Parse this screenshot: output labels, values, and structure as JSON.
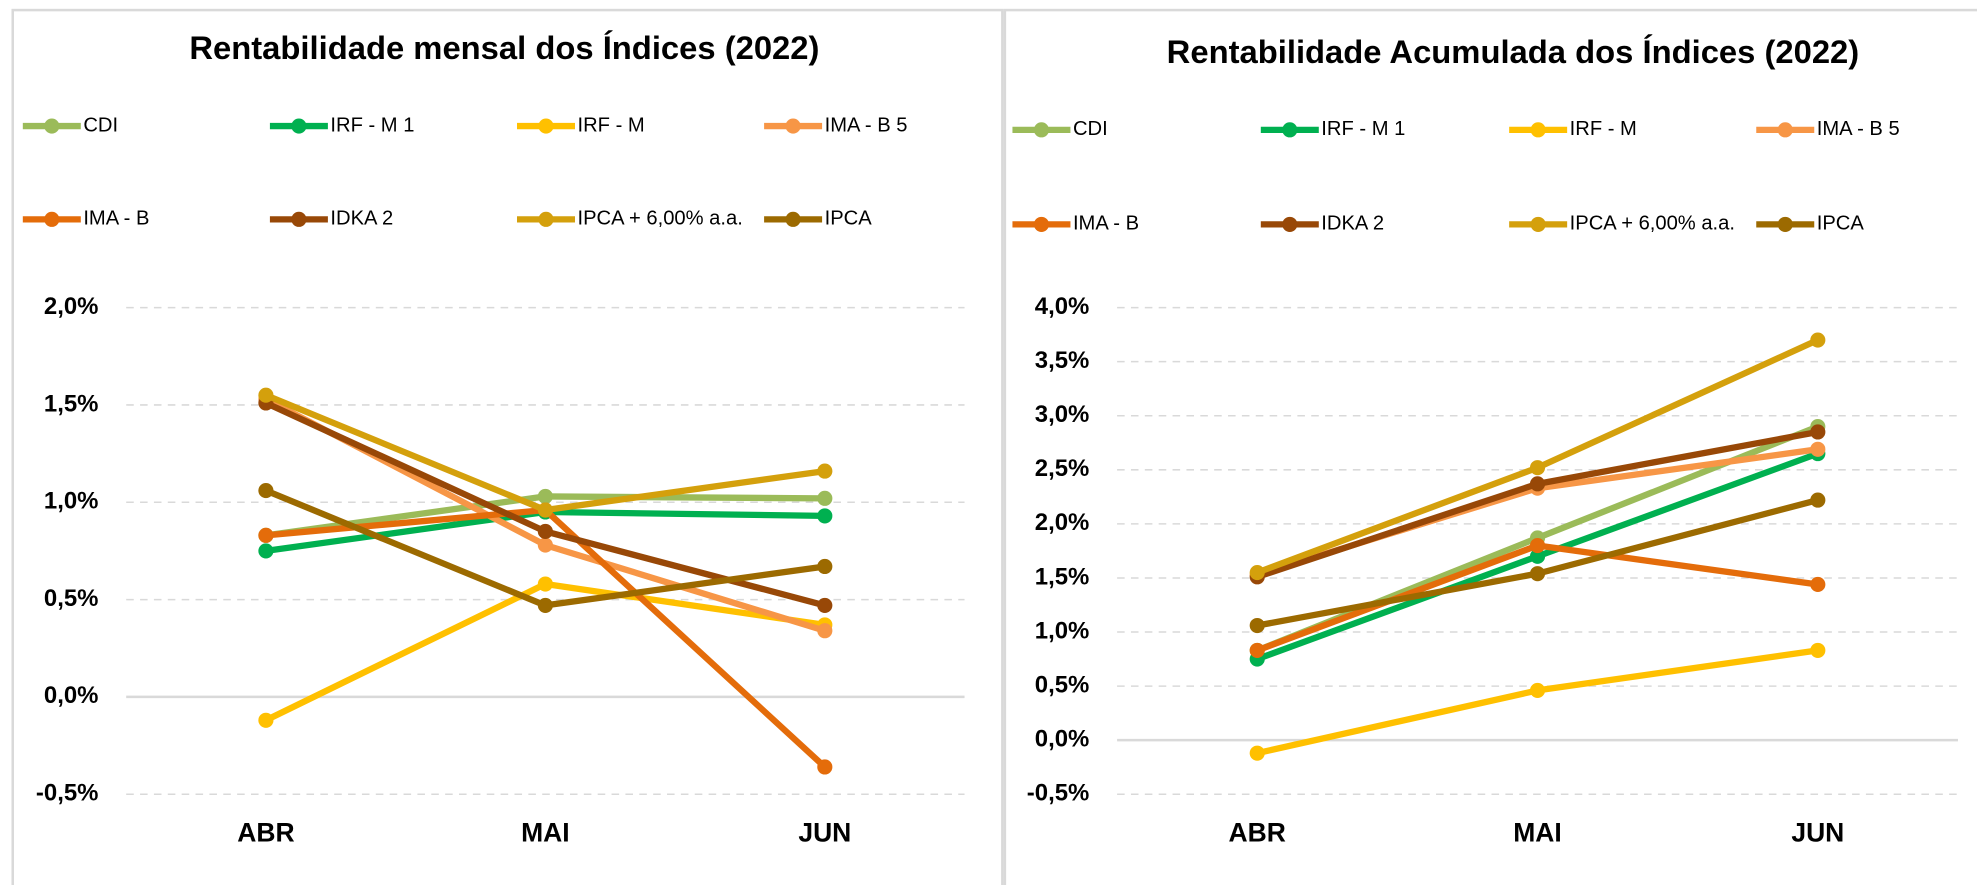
{
  "chart_data": [
    {
      "type": "line",
      "title": "Rentabilidade mensal dos Índices (2022)",
      "categories": [
        "ABR",
        "MAI",
        "JUN"
      ],
      "ylim": [
        -0.5,
        2.0
      ],
      "yticks": [
        {
          "value": -0.5,
          "label": "-0,5%"
        },
        {
          "value": 0,
          "label": "0,0%"
        },
        {
          "value": 0.5,
          "label": "0,5%"
        },
        {
          "value": 1.0,
          "label": "1,0%"
        },
        {
          "value": 1.5,
          "label": "1,5%"
        },
        {
          "value": 2.0,
          "label": "2,0%"
        }
      ],
      "grid": true,
      "series": [
        {
          "name": "CDI",
          "color": "#9bbb59",
          "values": [
            0.83,
            1.03,
            1.02
          ]
        },
        {
          "name": "IRF - M 1",
          "color": "#00b050",
          "values": [
            0.75,
            0.95,
            0.93
          ]
        },
        {
          "name": "IRF - M",
          "color": "#ffc000",
          "values": [
            -0.12,
            0.58,
            0.37
          ]
        },
        {
          "name": "IMA - B 5",
          "color": "#f79646",
          "values": [
            1.53,
            0.78,
            0.34
          ]
        },
        {
          "name": "IMA - B",
          "color": "#e46c0a",
          "values": [
            0.83,
            0.96,
            -0.36
          ]
        },
        {
          "name": "IDKA 2",
          "color": "#984807",
          "values": [
            1.51,
            0.85,
            0.47
          ]
        },
        {
          "name": "IPCA + 6,00% a.a.",
          "color": "#d4a00c",
          "values": [
            1.55,
            0.96,
            1.16
          ]
        },
        {
          "name": "IPCA",
          "color": "#9c6a00",
          "values": [
            1.06,
            0.47,
            0.67
          ]
        }
      ]
    },
    {
      "type": "line",
      "title": "Rentabilidade Acumulada dos Índices (2022)",
      "categories": [
        "ABR",
        "MAI",
        "JUN"
      ],
      "ylim": [
        -0.5,
        4.0
      ],
      "yticks": [
        {
          "value": -0.5,
          "label": "-0,5%"
        },
        {
          "value": 0,
          "label": "0,0%"
        },
        {
          "value": 0.5,
          "label": "0,5%"
        },
        {
          "value": 1.0,
          "label": "1,0%"
        },
        {
          "value": 1.5,
          "label": "1,5%"
        },
        {
          "value": 2.0,
          "label": "2,0%"
        },
        {
          "value": 2.5,
          "label": "2,5%"
        },
        {
          "value": 3.0,
          "label": "3,0%"
        },
        {
          "value": 3.5,
          "label": "3,5%"
        },
        {
          "value": 4.0,
          "label": "4,0%"
        }
      ],
      "grid": true,
      "series": [
        {
          "name": "CDI",
          "color": "#9bbb59",
          "values": [
            0.83,
            1.87,
            2.9
          ]
        },
        {
          "name": "IRF - M 1",
          "color": "#00b050",
          "values": [
            0.75,
            1.7,
            2.65
          ]
        },
        {
          "name": "IRF - M",
          "color": "#ffc000",
          "values": [
            -0.12,
            0.46,
            0.83
          ]
        },
        {
          "name": "IMA - B 5",
          "color": "#f79646",
          "values": [
            1.53,
            2.33,
            2.69
          ]
        },
        {
          "name": "IMA - B",
          "color": "#e46c0a",
          "values": [
            0.83,
            1.8,
            1.44
          ]
        },
        {
          "name": "IDKA 2",
          "color": "#984807",
          "values": [
            1.51,
            2.37,
            2.85
          ]
        },
        {
          "name": "IPCA + 6,00% a.a.",
          "color": "#d4a00c",
          "values": [
            1.55,
            2.52,
            3.7
          ]
        },
        {
          "name": "IPCA",
          "color": "#9c6a00",
          "values": [
            1.06,
            1.54,
            2.22
          ]
        }
      ]
    }
  ]
}
